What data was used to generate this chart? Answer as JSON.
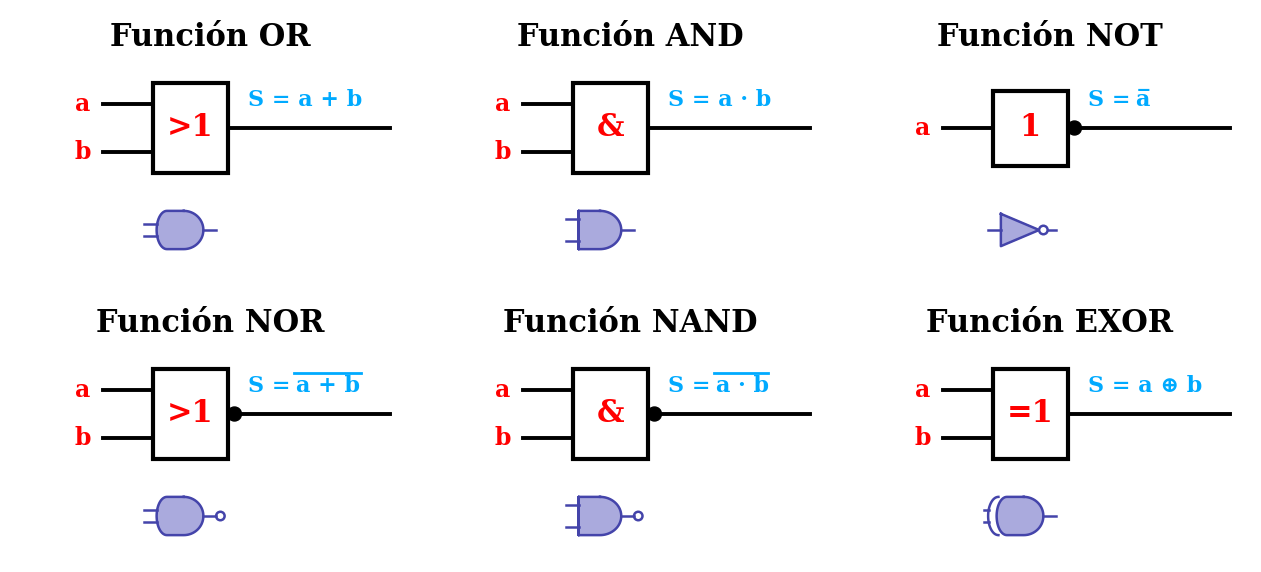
{
  "background": "#ffffff",
  "black": "#000000",
  "red": "#ff0000",
  "cyan": "#00aaff",
  "gate_blue": "#4444aa",
  "gate_fill": "#aaaadd",
  "panels": [
    {
      "title": "Función OR",
      "sym": ">1",
      "ninputs": 2,
      "formula_type": "or",
      "has_bubble": false,
      "shape": "or",
      "row": 0,
      "col": 0
    },
    {
      "title": "Función AND",
      "sym": "&",
      "ninputs": 2,
      "formula_type": "and",
      "has_bubble": false,
      "shape": "and",
      "row": 0,
      "col": 1
    },
    {
      "title": "Función NOT",
      "sym": "1",
      "ninputs": 1,
      "formula_type": "not",
      "has_bubble": true,
      "shape": "not",
      "row": 0,
      "col": 2
    },
    {
      "title": "Función NOR",
      "sym": ">1",
      "ninputs": 2,
      "formula_type": "nor",
      "has_bubble": true,
      "shape": "or",
      "row": 1,
      "col": 0
    },
    {
      "title": "Función NAND",
      "sym": "&",
      "ninputs": 2,
      "formula_type": "nand",
      "has_bubble": true,
      "shape": "and",
      "row": 1,
      "col": 1
    },
    {
      "title": "Función EXOR",
      "sym": "=1",
      "ninputs": 2,
      "formula_type": "exor",
      "has_bubble": false,
      "shape": "exor",
      "row": 1,
      "col": 2
    }
  ]
}
